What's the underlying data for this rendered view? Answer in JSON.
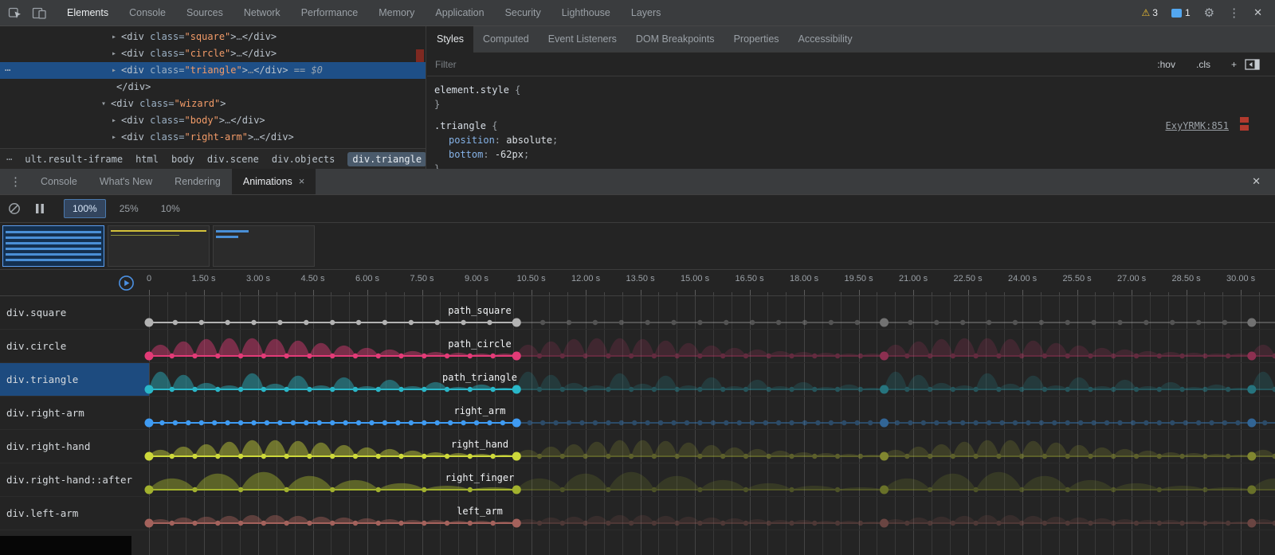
{
  "main_tabbar": {
    "tabs": [
      "Elements",
      "Console",
      "Sources",
      "Network",
      "Performance",
      "Memory",
      "Application",
      "Security",
      "Lighthouse",
      "Layers"
    ],
    "active_tab": "Elements",
    "warning_icon": "⚠",
    "warning_count": "3",
    "message_count": "1",
    "gear_glyph": "⚙",
    "kebab_glyph": "⋮",
    "close_glyph": "✕"
  },
  "elements_panel": {
    "overflow_dots": "⋯",
    "tree": [
      {
        "indent": 1,
        "arrow": "closed",
        "selected": false,
        "segments": [
          [
            "tag",
            "<div"
          ],
          [
            "attr",
            " class="
          ],
          [
            "val",
            "\"square\""
          ],
          [
            "tag",
            ">"
          ],
          [
            "dim",
            "…"
          ],
          [
            "tag",
            "</div>"
          ]
        ]
      },
      {
        "indent": 1,
        "arrow": "closed",
        "selected": false,
        "segments": [
          [
            "tag",
            "<div"
          ],
          [
            "attr",
            " class="
          ],
          [
            "val",
            "\"circle\""
          ],
          [
            "tag",
            ">"
          ],
          [
            "dim",
            "…"
          ],
          [
            "tag",
            "</div>"
          ]
        ]
      },
      {
        "indent": 1,
        "arrow": "closed",
        "selected": true,
        "segments": [
          [
            "tag",
            "<div"
          ],
          [
            "attr",
            " class="
          ],
          [
            "val",
            "\"triangle\""
          ],
          [
            "tag",
            ">"
          ],
          [
            "dim",
            "…"
          ],
          [
            "tag",
            "</div>"
          ],
          [
            "eq",
            "  ==  $0"
          ]
        ]
      },
      {
        "indent": 1,
        "arrow": "none",
        "selected": false,
        "segments": [
          [
            "tag",
            "</div>"
          ]
        ]
      },
      {
        "indent": 0,
        "arrow": "open",
        "selected": false,
        "segments": [
          [
            "tag",
            "<div"
          ],
          [
            "attr",
            " class="
          ],
          [
            "val",
            "\"wizard\""
          ],
          [
            "tag",
            ">"
          ]
        ]
      },
      {
        "indent": 1,
        "arrow": "closed",
        "selected": false,
        "segments": [
          [
            "tag",
            "<div"
          ],
          [
            "attr",
            " class="
          ],
          [
            "val",
            "\"body\""
          ],
          [
            "tag",
            ">"
          ],
          [
            "dim",
            "…"
          ],
          [
            "tag",
            "</div>"
          ]
        ]
      },
      {
        "indent": 1,
        "arrow": "closed",
        "selected": false,
        "segments": [
          [
            "tag",
            "<div"
          ],
          [
            "attr",
            " class="
          ],
          [
            "val",
            "\"right-arm\""
          ],
          [
            "tag",
            ">"
          ],
          [
            "dim",
            "…"
          ],
          [
            "tag",
            "</div>"
          ]
        ]
      }
    ],
    "breadcrumbs": [
      "ult.result-iframe",
      "html",
      "body",
      "div.scene",
      "div.objects",
      "div.triangle"
    ],
    "selected_crumb": "div.triangle"
  },
  "styles_panel": {
    "tabs": [
      "Styles",
      "Computed",
      "Event Listeners",
      "DOM Breakpoints",
      "Properties",
      "Accessibility"
    ],
    "active_tab": "Styles",
    "filter_placeholder": "Filter",
    "controls": [
      ":hov",
      ".cls",
      "+"
    ],
    "rules": [
      {
        "selector": "element.style",
        "link": "",
        "declarations": []
      },
      {
        "selector": ".triangle",
        "link": "ExyYRMK:851",
        "declarations": [
          {
            "prop": "position",
            "value": "absolute"
          },
          {
            "prop": "bottom",
            "value": "-62px"
          }
        ]
      }
    ]
  },
  "drawer": {
    "kebab_glyph": "⋮",
    "tabs": [
      "Console",
      "What's New",
      "Rendering",
      "Animations"
    ],
    "active_tab": "Animations",
    "tab_close_glyph": "×",
    "close_glyph": "✕"
  },
  "animations": {
    "rates": [
      "100%",
      "25%",
      "10%"
    ],
    "active_rate": "100%",
    "iteration_seconds": 10.1,
    "previews": [
      {
        "selected": true,
        "stripes": [
          [
            6,
            3,
            1,
            "#4a8fd6"
          ],
          [
            13,
            3,
            1,
            "#4a8fd6"
          ],
          [
            20,
            3,
            1,
            "#4a8fd6"
          ],
          [
            27,
            3,
            1,
            "#4a8fd6"
          ],
          [
            34,
            3,
            1,
            "#4a8fd6"
          ],
          [
            41,
            3,
            1,
            "#4a8fd6"
          ]
        ]
      },
      {
        "selected": false,
        "stripes": [
          [
            5,
            2,
            1,
            "#d4c23a"
          ],
          [
            11,
            1,
            0.72,
            "#8a8f3a"
          ]
        ]
      },
      {
        "selected": false,
        "stripes": [
          [
            5,
            3,
            0.34,
            "#4a8fd6"
          ],
          [
            12,
            3,
            0.23,
            "#4a8fd6"
          ]
        ]
      }
    ],
    "ruler": [
      {
        "t": 0,
        "label": "0"
      },
      {
        "t": 1.5,
        "label": "1.50 s"
      },
      {
        "t": 3,
        "label": "3.00 s"
      },
      {
        "t": 4.5,
        "label": "4.50 s"
      },
      {
        "t": 6,
        "label": "6.00 s"
      },
      {
        "t": 7.5,
        "label": "7.50 s"
      },
      {
        "t": 9,
        "label": "9.00 s"
      },
      {
        "t": 10.5,
        "label": "10.50 s"
      },
      {
        "t": 12,
        "label": "12.00 s"
      },
      {
        "t": 13.5,
        "label": "13.50 s"
      },
      {
        "t": 15,
        "label": "15.00 s"
      },
      {
        "t": 16.5,
        "label": "16.50 s"
      },
      {
        "t": 18,
        "label": "18.00 s"
      },
      {
        "t": 19.5,
        "label": "19.50 s"
      },
      {
        "t": 21,
        "label": "21.00 s"
      },
      {
        "t": 22.5,
        "label": "22.50 s"
      },
      {
        "t": 24,
        "label": "24.00 s"
      },
      {
        "t": 25.5,
        "label": "25.50 s"
      },
      {
        "t": 27,
        "label": "27.00 s"
      },
      {
        "t": 28.5,
        "label": "28.50 s"
      },
      {
        "t": 30,
        "label": "30.00 s"
      }
    ],
    "rows": [
      {
        "element": "div.square",
        "label": "path_square",
        "color": "#b3b3b3",
        "selected": false,
        "dots": [
          0,
          0.72,
          1.44,
          2.16,
          2.88,
          3.6,
          4.32,
          5.04,
          5.76,
          6.48,
          7.2,
          7.92,
          8.64,
          9.36,
          10.1
        ],
        "humps": []
      },
      {
        "element": "div.circle",
        "label": "path_circle",
        "color": "#e23b77",
        "selected": false,
        "dots": [
          0,
          0.63,
          1.26,
          1.89,
          2.52,
          3.15,
          3.78,
          4.41,
          5.04,
          5.67,
          6.3,
          6.93,
          7.56,
          8.19,
          8.82,
          9.45,
          10.1
        ],
        "humps": [
          14,
          18,
          21,
          22,
          22,
          21,
          19,
          16,
          13,
          10,
          8,
          6,
          5,
          4,
          3,
          3
        ]
      },
      {
        "element": "div.triangle",
        "label": "path_triangle",
        "color": "#2ab7c8",
        "selected": true,
        "dots": [
          0,
          0.63,
          1.26,
          1.89,
          2.52,
          3.15,
          3.78,
          4.41,
          5.04,
          5.67,
          6.3,
          6.93,
          7.56,
          8.19,
          8.82,
          9.45,
          10.1
        ],
        "humps": [
          22,
          18,
          8,
          5,
          20,
          7,
          17,
          5,
          15,
          4,
          12,
          4,
          9,
          3,
          6,
          2
        ]
      },
      {
        "element": "div.right-arm",
        "label": "right_arm",
        "color": "#3f9bf2",
        "selected": false,
        "dots": [
          0,
          0.36,
          0.72,
          1.08,
          1.44,
          1.8,
          2.16,
          2.52,
          2.88,
          3.24,
          3.6,
          3.96,
          4.32,
          4.68,
          5.04,
          5.4,
          5.76,
          6.12,
          6.48,
          6.84,
          7.2,
          7.56,
          7.92,
          8.28,
          8.64,
          9,
          9.36,
          9.72,
          10.1
        ],
        "humps": []
      },
      {
        "element": "div.right-hand",
        "label": "right_hand",
        "color": "#cdd83b",
        "selected": false,
        "dots": [
          0,
          0.63,
          1.26,
          1.89,
          2.52,
          3.15,
          3.78,
          4.41,
          5.04,
          5.67,
          6.3,
          6.93,
          7.56,
          8.19,
          8.82,
          9.45,
          10.1
        ],
        "humps": [
          8,
          12,
          15,
          18,
          20,
          20,
          19,
          17,
          14,
          11,
          9,
          7,
          5,
          4,
          3,
          2
        ]
      },
      {
        "element": "div.right-hand::after",
        "label": "right_finger",
        "color": "#a2b12e",
        "selected": false,
        "dots": [
          0,
          1.26,
          2.52,
          3.78,
          5.04,
          6.3,
          7.56,
          8.82,
          10.1
        ],
        "humps": [
          14,
          20,
          22,
          17,
          12,
          8,
          5,
          3
        ]
      },
      {
        "element": "div.left-arm",
        "label": "left_arm",
        "color": "#a4625c",
        "selected": false,
        "dots": [
          0,
          0.63,
          1.26,
          1.89,
          2.52,
          3.15,
          3.78,
          4.41,
          5.04,
          5.67,
          6.3,
          6.93,
          7.56,
          8.19,
          8.82,
          9.45,
          10.1
        ],
        "humps": [
          5,
          7,
          8,
          9,
          10,
          10,
          9,
          8,
          7,
          6,
          5,
          4,
          4,
          3,
          3,
          2
        ]
      }
    ]
  }
}
